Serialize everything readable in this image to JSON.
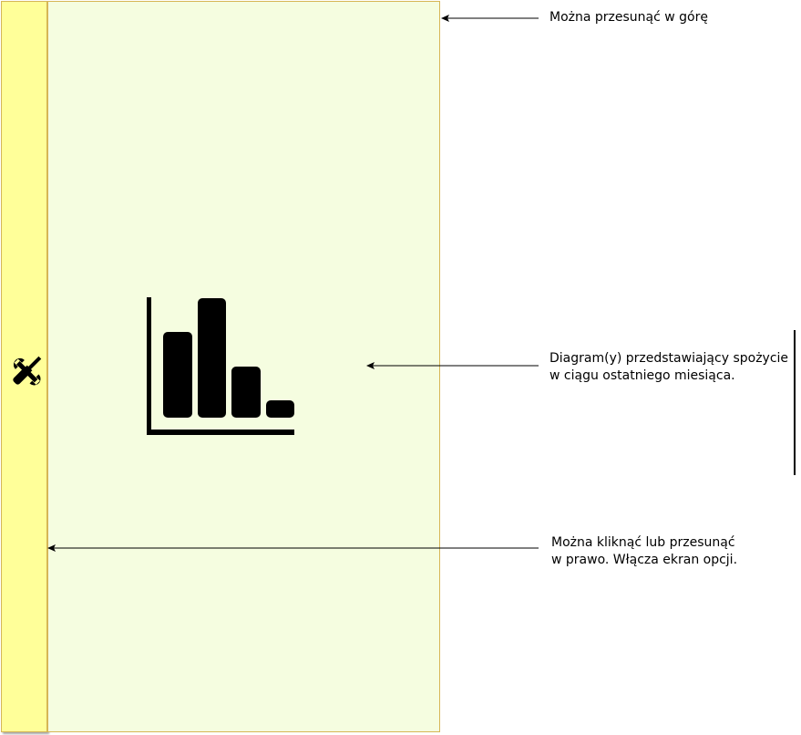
{
  "panel_colors": {
    "sidebar_fill": "#ffff99",
    "panel_fill": "#f5fde0",
    "border": "#d6b656"
  },
  "sidebar": {
    "icon": "tools-icon"
  },
  "main_panel": {
    "icon": "bar-chart-icon"
  },
  "annotations": {
    "swipe_up": {
      "line1": "Można przesunąć w górę"
    },
    "chart": {
      "line1": "Diagram(y) przedstawiający spożycie",
      "line2": "w ciągu ostatniego miesiąca."
    },
    "options": {
      "line1": "Można kliknąć lub przesunąć",
      "line2": "w prawo. Włącza ekran opcji."
    }
  }
}
